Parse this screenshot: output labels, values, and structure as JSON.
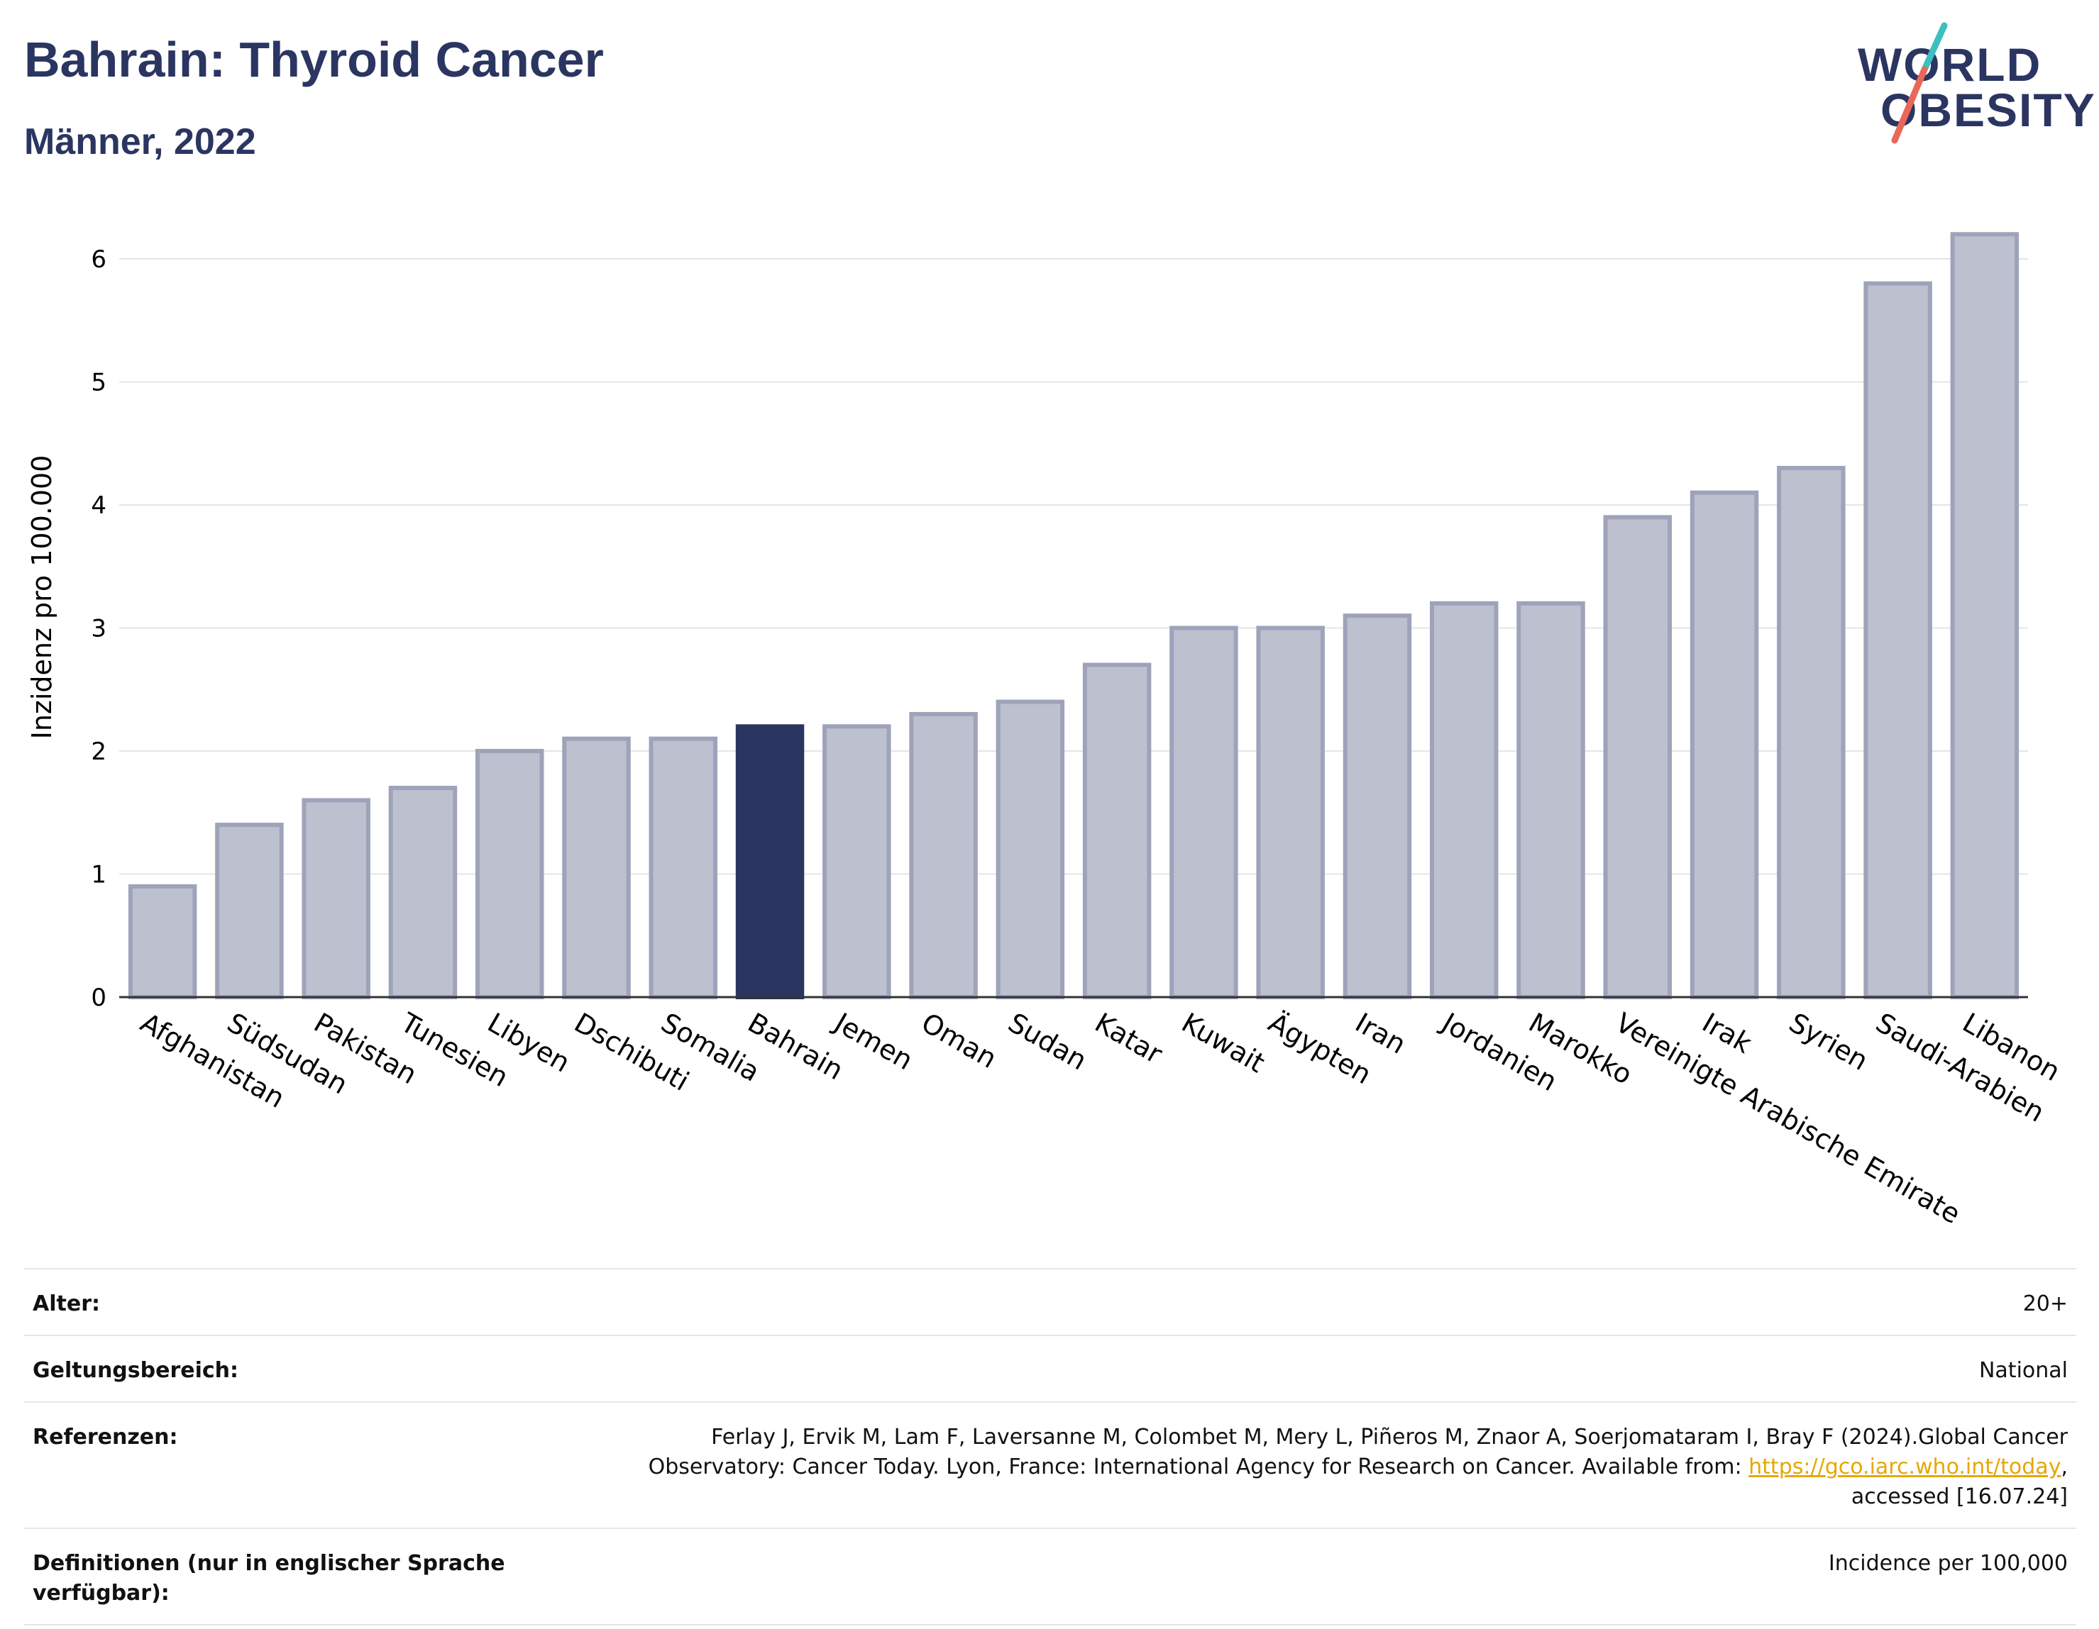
{
  "header": {
    "title": "Bahrain: Thyroid Cancer",
    "subtitle": "Männer, 2022"
  },
  "logo": {
    "line1": "WORLD",
    "line2": "OBESITY",
    "colors": {
      "text": "#2b3561",
      "slash_top": "#3bbfbf",
      "slash_bottom": "#e8685a"
    }
  },
  "chart_data": {
    "type": "bar",
    "title": "",
    "xlabel": "",
    "ylabel": "Inzidenz pro 100.000",
    "ylim": [
      0,
      6.5
    ],
    "yticks": [
      0,
      1,
      2,
      3,
      4,
      5,
      6
    ],
    "grid": true,
    "highlight": "Bahrain",
    "colors": {
      "bar": "#bcc0cf",
      "bar_edge": "#9ea3ba",
      "highlight": "#2b3561",
      "grid": "#e5e5e5",
      "axis": "#333333"
    },
    "categories": [
      "Afghanistan",
      "Südsudan",
      "Pakistan",
      "Tunesien",
      "Libyen",
      "Dschibuti",
      "Somalia",
      "Bahrain",
      "Jemen",
      "Oman",
      "Sudan",
      "Katar",
      "Kuwait",
      "Ägypten",
      "Iran",
      "Jordanien",
      "Marokko",
      "Vereinigte Arabische Emirate",
      "Irak",
      "Syrien",
      "Saudi-Arabien",
      "Libanon"
    ],
    "values": [
      0.9,
      1.4,
      1.6,
      1.7,
      2.0,
      2.1,
      2.1,
      2.2,
      2.2,
      2.3,
      2.4,
      2.7,
      3.0,
      3.0,
      3.1,
      3.2,
      3.2,
      3.9,
      4.1,
      4.3,
      5.8,
      6.2
    ]
  },
  "info": {
    "rows": [
      {
        "label": "Alter:",
        "value": "20+"
      },
      {
        "label": "Geltungsbereich:",
        "value": "National"
      },
      {
        "label": "Referenzen:",
        "value_line1": "Ferlay J, Ervik M, Lam F, Laversanne M, Colombet M, Mery L, Piñeros M, Znaor A, Soerjomataram I, Bray F (2024).Global Cancer",
        "value_line2_pre": "Observatory: Cancer Today. Lyon, France: International Agency for Research on Cancer. Available from: ",
        "value_link": "https://gco.iarc.who.int/today",
        "value_line2_post": ",",
        "value_line3": "accessed [16.07.24]"
      },
      {
        "label": "Definitionen (nur in englischer Sprache verfügbar):",
        "value": "Incidence per 100,000"
      }
    ]
  }
}
